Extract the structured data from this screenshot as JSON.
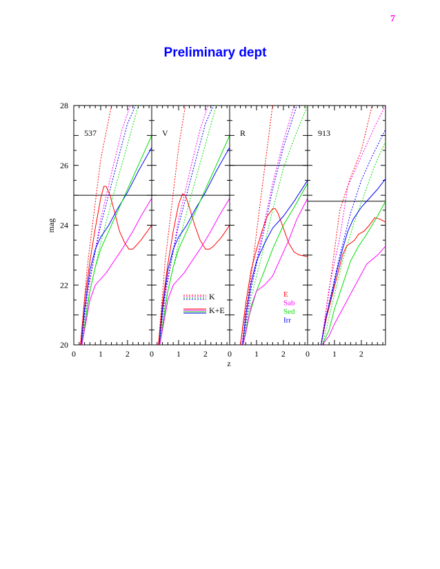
{
  "page_number": "7",
  "title": "Preliminary dept",
  "chart_data": {
    "type": "line",
    "ylabel": "mag",
    "xlabel": "z",
    "ylim": [
      20,
      28
    ],
    "yticks": [
      "20",
      "22",
      "24",
      "26",
      "28"
    ],
    "xlim": [
      0,
      2.9
    ],
    "xticks": [
      "0",
      "1",
      "2"
    ],
    "grid": false,
    "colors": {
      "E": "#ff0000",
      "Sab": "#ff00ff",
      "Sed": "#00dd00",
      "Irr": "#0000ff"
    },
    "legend_types": {
      "location": "lower-left of panel 2",
      "entries": [
        "K",
        "K+E"
      ],
      "styles": [
        "dotted",
        "solid"
      ]
    },
    "legend_types_panel": 1,
    "legend_seds": {
      "location": "lower-middle of panel 3",
      "entries": [
        "E",
        "Sab",
        "Sed",
        "Irr"
      ]
    },
    "legend_seds_panel": 2,
    "panels": [
      {
        "label": "537",
        "limit": 25.0,
        "series": [
          {
            "name": "E",
            "style": "dotted",
            "x": [
              0.25,
              0.5,
              1.0,
              1.4
            ],
            "y": [
              20.0,
              22.6,
              26.2,
              28.0
            ]
          },
          {
            "name": "Sab",
            "style": "dotted",
            "x": [
              0.25,
              0.5,
              1.0,
              1.5,
              1.8,
              2.1
            ],
            "y": [
              20.0,
              21.6,
              24.2,
              26.1,
              27.2,
              28.0
            ]
          },
          {
            "name": "Irr",
            "style": "dotted",
            "x": [
              0.28,
              0.5,
              1.0,
              1.5,
              2.0,
              2.3
            ],
            "y": [
              20.0,
              21.8,
              24.0,
              25.7,
              27.4,
              28.0
            ]
          },
          {
            "name": "Sed",
            "style": "dotted",
            "x": [
              0.3,
              0.5,
              1.0,
              1.5,
              2.0,
              2.4
            ],
            "y": [
              20.0,
              21.4,
              23.4,
              25.1,
              26.7,
              28.0
            ]
          },
          {
            "name": "E",
            "style": "solid",
            "x": [
              0.25,
              0.4,
              0.6,
              0.8,
              1.0,
              1.12,
              1.2,
              1.35,
              1.5,
              1.7,
              1.9,
              2.05,
              2.2,
              2.5,
              2.9
            ],
            "y": [
              20.0,
              21.5,
              22.8,
              23.9,
              24.9,
              25.3,
              25.3,
              25.0,
              24.5,
              23.8,
              23.4,
              23.2,
              23.2,
              23.5,
              24.0
            ]
          },
          {
            "name": "Irr",
            "style": "solid",
            "x": [
              0.28,
              0.4,
              0.6,
              0.8,
              1.0,
              1.3,
              1.6,
              2.0,
              2.4,
              2.9
            ],
            "y": [
              20.0,
              21.2,
              22.5,
              23.2,
              23.6,
              24.0,
              24.5,
              25.1,
              25.8,
              26.6
            ]
          },
          {
            "name": "Sed",
            "style": "solid",
            "x": [
              0.3,
              0.4,
              0.6,
              0.8,
              1.0,
              1.3,
              1.6,
              2.0,
              2.4,
              2.9
            ],
            "y": [
              20.0,
              20.6,
              21.8,
              22.6,
              23.2,
              23.8,
              24.4,
              25.2,
              26.0,
              27.0
            ]
          },
          {
            "name": "Sab",
            "style": "solid",
            "x": [
              0.3,
              0.4,
              0.6,
              0.8,
              0.9,
              1.0,
              1.2,
              1.5,
              1.8,
              2.2,
              2.5,
              2.9
            ],
            "y": [
              20.0,
              20.5,
              21.5,
              22.0,
              22.1,
              22.2,
              22.4,
              22.8,
              23.2,
              23.8,
              24.3,
              24.9
            ]
          }
        ]
      },
      {
        "label": "V",
        "limit": 25.0,
        "series": [
          {
            "name": "E",
            "style": "dotted",
            "x": [
              0.25,
              0.5,
              1.0,
              1.25
            ],
            "y": [
              20.0,
              22.8,
              26.6,
              28.0
            ]
          },
          {
            "name": "Sab",
            "style": "dotted",
            "x": [
              0.25,
              0.5,
              1.0,
              1.5,
              1.8,
              2.1
            ],
            "y": [
              20.0,
              21.6,
              24.2,
              26.1,
              27.2,
              28.0
            ]
          },
          {
            "name": "Irr",
            "style": "dotted",
            "x": [
              0.28,
              0.5,
              1.0,
              1.5,
              2.0,
              2.3
            ],
            "y": [
              20.0,
              21.8,
              24.0,
              25.7,
              27.4,
              28.0
            ]
          },
          {
            "name": "Sed",
            "style": "dotted",
            "x": [
              0.3,
              0.5,
              1.0,
              1.5,
              2.0,
              2.4
            ],
            "y": [
              20.0,
              21.4,
              23.4,
              25.1,
              26.7,
              28.0
            ]
          },
          {
            "name": "E",
            "style": "solid",
            "x": [
              0.25,
              0.4,
              0.6,
              0.8,
              1.0,
              1.15,
              1.25,
              1.4,
              1.6,
              1.8,
              2.0,
              2.15,
              2.3,
              2.6,
              2.9
            ],
            "y": [
              20.0,
              21.4,
              22.7,
              23.8,
              24.7,
              25.05,
              25.0,
              24.6,
              24.0,
              23.5,
              23.2,
              23.2,
              23.3,
              23.6,
              24.0
            ]
          },
          {
            "name": "Irr",
            "style": "solid",
            "x": [
              0.28,
              0.4,
              0.6,
              0.8,
              1.0,
              1.3,
              1.6,
              2.0,
              2.4,
              2.9
            ],
            "y": [
              20.0,
              21.2,
              22.5,
              23.2,
              23.6,
              24.0,
              24.5,
              25.1,
              25.8,
              26.6
            ]
          },
          {
            "name": "Sed",
            "style": "solid",
            "x": [
              0.3,
              0.4,
              0.6,
              0.8,
              1.0,
              1.3,
              1.6,
              2.0,
              2.4,
              2.9
            ],
            "y": [
              20.0,
              20.6,
              21.8,
              22.6,
              23.2,
              23.8,
              24.4,
              25.2,
              26.0,
              27.0
            ]
          },
          {
            "name": "Sab",
            "style": "solid",
            "x": [
              0.3,
              0.4,
              0.6,
              0.8,
              0.9,
              1.0,
              1.2,
              1.5,
              1.8,
              2.2,
              2.5,
              2.9
            ],
            "y": [
              20.0,
              20.5,
              21.5,
              22.0,
              22.1,
              22.2,
              22.4,
              22.8,
              23.2,
              23.8,
              24.3,
              24.9
            ]
          }
        ]
      },
      {
        "label": "R",
        "limit": 26.0,
        "series": [
          {
            "name": "E",
            "style": "dotted",
            "x": [
              0.4,
              0.8,
              1.2,
              1.6
            ],
            "y": [
              20.0,
              22.3,
              25.2,
              28.0
            ]
          },
          {
            "name": "Sab",
            "style": "dotted",
            "x": [
              0.45,
              0.8,
              1.2,
              1.6,
              2.0,
              2.4
            ],
            "y": [
              20.0,
              21.9,
              23.7,
              25.4,
              26.8,
              28.0
            ]
          },
          {
            "name": "Irr",
            "style": "dotted",
            "x": [
              0.48,
              0.8,
              1.2,
              1.6,
              2.0,
              2.5
            ],
            "y": [
              20.0,
              21.9,
              23.5,
              25.2,
              26.6,
              28.0
            ]
          },
          {
            "name": "Sed",
            "style": "dotted",
            "x": [
              0.5,
              0.8,
              1.2,
              1.6,
              2.0,
              2.4,
              2.9
            ],
            "y": [
              20.0,
              21.6,
              23.0,
              24.5,
              25.9,
              26.9,
              28.0
            ]
          },
          {
            "name": "E",
            "style": "solid",
            "x": [
              0.4,
              0.6,
              0.8,
              1.0,
              1.2,
              1.4,
              1.6,
              1.7,
              1.8,
              2.0,
              2.2,
              2.4,
              2.6,
              2.9
            ],
            "y": [
              20.0,
              21.4,
              22.5,
              23.2,
              23.8,
              24.3,
              24.55,
              24.55,
              24.4,
              23.9,
              23.4,
              23.1,
              23.0,
              22.95
            ]
          },
          {
            "name": "Irr",
            "style": "solid",
            "x": [
              0.48,
              0.6,
              0.8,
              1.0,
              1.3,
              1.6,
              2.0,
              2.4,
              2.9
            ],
            "y": [
              20.0,
              21.0,
              22.1,
              22.8,
              23.4,
              23.9,
              24.3,
              24.8,
              25.5
            ]
          },
          {
            "name": "Sed",
            "style": "solid",
            "x": [
              0.5,
              0.7,
              1.0,
              1.3,
              1.6,
              2.0,
              2.4,
              2.9
            ],
            "y": [
              20.0,
              20.9,
              21.8,
              22.5,
              23.2,
              24.0,
              24.6,
              25.4
            ]
          },
          {
            "name": "Sab",
            "style": "solid",
            "x": [
              0.5,
              0.6,
              0.8,
              1.0,
              1.3,
              1.6,
              1.9,
              2.2,
              2.5,
              2.9
            ],
            "y": [
              20.0,
              20.4,
              21.3,
              21.8,
              22.0,
              22.3,
              22.9,
              23.5,
              24.2,
              24.9
            ]
          }
        ]
      },
      {
        "label": "913",
        "limit": 24.8,
        "series": [
          {
            "name": "E",
            "style": "dotted",
            "x": [
              0.5,
              0.8,
              1.2,
              1.6,
              2.0,
              2.4
            ],
            "y": [
              20.0,
              21.8,
              24.5,
              25.6,
              26.5,
              28.0
            ]
          },
          {
            "name": "Sab",
            "style": "dotted",
            "x": [
              0.5,
              0.8,
              1.2,
              1.5,
              2.0,
              2.5,
              2.9
            ],
            "y": [
              20.0,
              21.9,
              23.6,
              25.3,
              26.3,
              27.3,
              28.0
            ]
          },
          {
            "name": "Irr",
            "style": "dotted",
            "x": [
              0.5,
              0.8,
              1.2,
              1.6,
              2.0,
              2.4,
              2.9
            ],
            "y": [
              20.0,
              21.4,
              23.0,
              24.4,
              25.5,
              26.3,
              27.2
            ]
          },
          {
            "name": "Sed",
            "style": "dotted",
            "x": [
              0.55,
              0.9,
              1.3,
              1.7,
              2.1,
              2.5,
              2.9
            ],
            "y": [
              20.0,
              21.3,
              22.8,
              24.0,
              25.0,
              26.0,
              26.8
            ]
          },
          {
            "name": "E",
            "style": "solid",
            "x": [
              0.5,
              0.7,
              0.9,
              1.1,
              1.3,
              1.45,
              1.6,
              1.75,
              1.9,
              2.1,
              2.3,
              2.5,
              2.7,
              2.9
            ],
            "y": [
              20.0,
              20.9,
              21.6,
              22.3,
              23.0,
              23.3,
              23.4,
              23.5,
              23.7,
              23.8,
              24.0,
              24.25,
              24.2,
              24.1
            ]
          },
          {
            "name": "Irr",
            "style": "solid",
            "x": [
              0.5,
              0.7,
              0.9,
              1.1,
              1.3,
              1.5,
              1.7,
              2.0,
              2.3,
              2.6,
              2.9
            ],
            "y": [
              20.0,
              21.0,
              21.7,
              22.5,
              23.2,
              23.8,
              24.2,
              24.6,
              24.9,
              25.2,
              25.55
            ]
          },
          {
            "name": "Sed",
            "style": "solid",
            "x": [
              0.55,
              0.8,
              1.0,
              1.3,
              1.6,
              1.9,
              2.2,
              2.6,
              2.9
            ],
            "y": [
              20.0,
              20.5,
              21.2,
              22.0,
              22.8,
              23.3,
              23.7,
              24.3,
              24.8
            ]
          },
          {
            "name": "Sab",
            "style": "solid",
            "x": [
              0.55,
              0.8,
              1.0,
              1.3,
              1.6,
              1.9,
              2.2,
              2.6,
              2.9
            ],
            "y": [
              20.0,
              20.3,
              20.7,
              21.2,
              21.7,
              22.2,
              22.7,
              23.0,
              23.3
            ]
          }
        ]
      }
    ]
  }
}
